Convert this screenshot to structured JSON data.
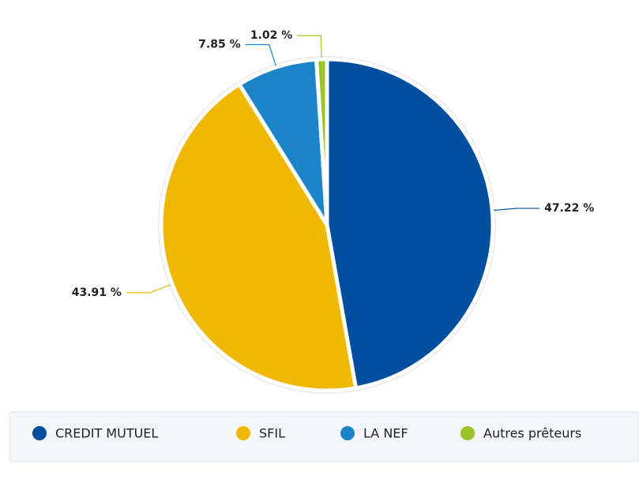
{
  "chart_data": {
    "type": "pie",
    "categories": [
      "CREDIT MUTUEL",
      "SFIL",
      "LA NEF",
      "Autres prêteurs"
    ],
    "values": [
      47.22,
      43.91,
      7.85,
      1.02
    ],
    "value_labels": [
      "47.22 %",
      "43.91 %",
      "7.85 %",
      "1.02 %"
    ],
    "colors": [
      "#004f9f",
      "#f0b800",
      "#1a85c8",
      "#9bc42a"
    ],
    "legend": "bottom"
  }
}
